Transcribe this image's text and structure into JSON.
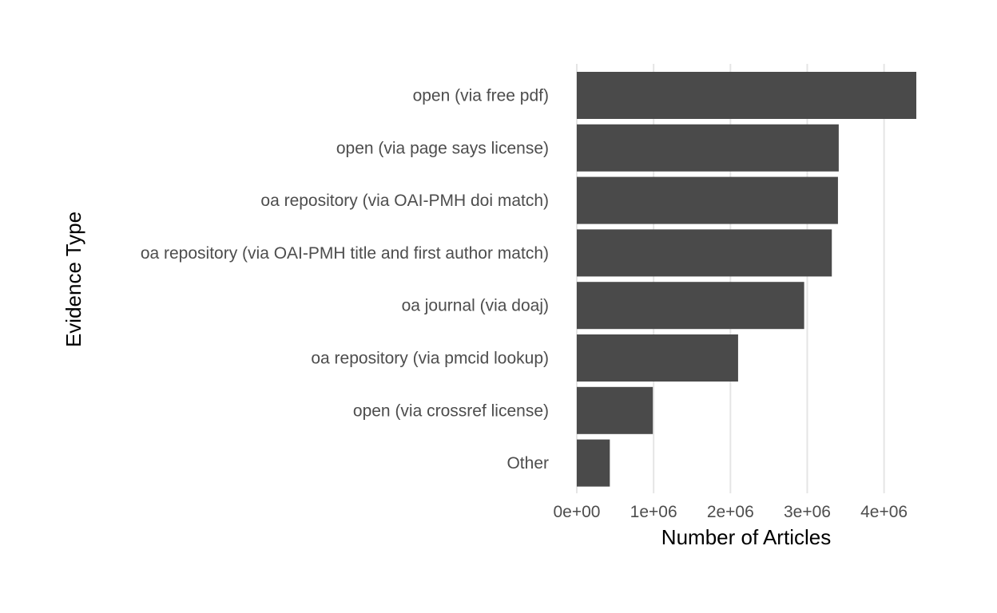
{
  "chart_data": {
    "type": "bar",
    "orientation": "horizontal",
    "title": "",
    "xlabel": "Number of Articles",
    "ylabel": "Evidence Type",
    "xlim": [
      0,
      4420000
    ],
    "x_ticks": [
      0,
      1000000,
      2000000,
      3000000,
      4000000
    ],
    "x_tick_labels": [
      "0e+00",
      "1e+06",
      "2e+06",
      "3e+06",
      "4e+06"
    ],
    "grid": "vertical major gridlines",
    "legend": "none",
    "bar_color": "#4a4a4a",
    "categories": [
      "open (via free pdf)",
      "open (via page says license)",
      "oa repository (via OAI-PMH doi match)",
      "oa repository (via OAI-PMH title and first author match)",
      "oa journal (via doaj)",
      "oa repository (via pmcid lookup)",
      "open (via crossref license)",
      "Other"
    ],
    "values": [
      4420000,
      3410000,
      3400000,
      3320000,
      2960000,
      2100000,
      990000,
      430000
    ]
  }
}
